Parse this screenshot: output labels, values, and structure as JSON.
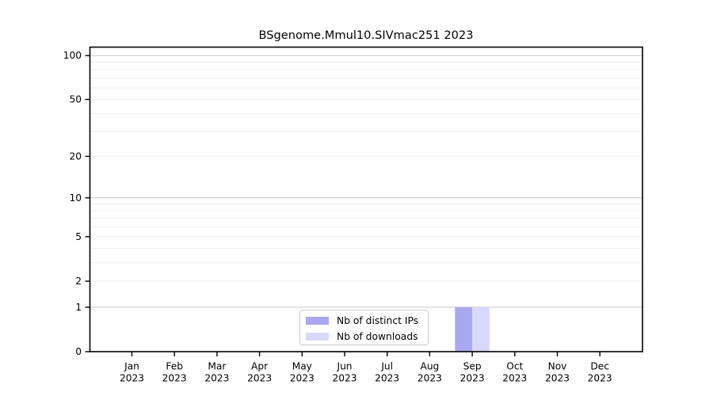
{
  "title": "BSgenome.Mmul10.SIVmac251 2023",
  "legend": {
    "items": [
      {
        "label": "Nb of distinct IPs",
        "color": "#a8a8f0"
      },
      {
        "label": "Nb of downloads",
        "color": "#d8d8fa"
      }
    ]
  },
  "chart_data": {
    "type": "bar",
    "title": "BSgenome.Mmul10.SIVmac251 2023",
    "categories": [
      "Jan 2023",
      "Feb 2023",
      "Mar 2023",
      "Apr 2023",
      "May 2023",
      "Jun 2023",
      "Jul 2023",
      "Aug 2023",
      "Sep 2023",
      "Oct 2023",
      "Nov 2023",
      "Dec 2023"
    ],
    "x_tick_month_labels": [
      "Jan",
      "Feb",
      "Mar",
      "Apr",
      "May",
      "Jun",
      "Jul",
      "Aug",
      "Sep",
      "Oct",
      "Nov",
      "Dec"
    ],
    "x_tick_year_label": "2023",
    "series": [
      {
        "name": "Nb of distinct IPs",
        "color": "#a8a8f0",
        "values": [
          0,
          0,
          0,
          0,
          0,
          0,
          0,
          0,
          1,
          0,
          0,
          0
        ]
      },
      {
        "name": "Nb of downloads",
        "color": "#d8d8fa",
        "values": [
          0,
          0,
          0,
          0,
          0,
          0,
          0,
          0,
          1,
          0,
          0,
          0
        ]
      }
    ],
    "xlabel": "",
    "ylabel": "",
    "y_axis": {
      "scale": "log1p",
      "tick_values": [
        0,
        1,
        2,
        5,
        10,
        20,
        50,
        100
      ],
      "tick_labels": [
        "0",
        "1",
        "2",
        "5",
        "10",
        "20",
        "50",
        "100"
      ],
      "major_gridlines": [
        1,
        10,
        100
      ],
      "minor_gridlines": [
        2,
        3,
        4,
        5,
        6,
        7,
        8,
        9,
        20,
        30,
        40,
        50,
        60,
        70,
        80,
        90
      ],
      "ylim": [
        0,
        114
      ]
    },
    "grid": true,
    "legend_position": "bottom-center"
  },
  "colors": {
    "background": "#ffffff",
    "spine": "#000000",
    "major_grid": "#c8c8c8",
    "minor_grid": "#ededed",
    "legend_border": "#cccccc",
    "bar_distinct_ips": "#a8a8f0",
    "bar_downloads": "#d8d8fa"
  }
}
